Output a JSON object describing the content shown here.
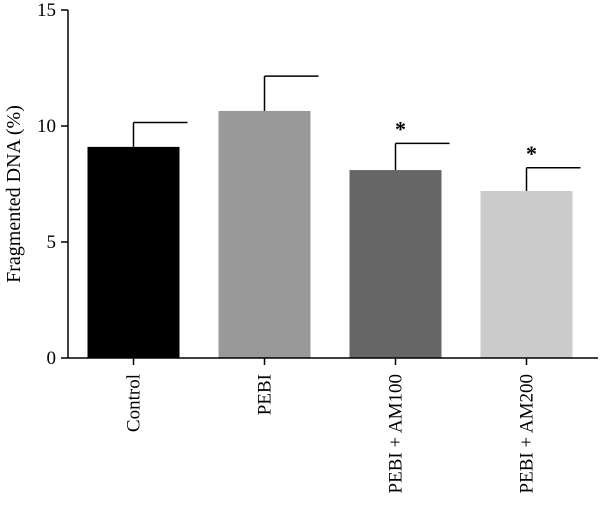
{
  "chart_data": {
    "type": "bar",
    "title": "",
    "xlabel": "",
    "ylabel": "Fragmented DNA (%)",
    "ylim": [
      0,
      15
    ],
    "yticks": [
      0,
      5,
      10,
      15
    ],
    "categories": [
      "Control",
      "PEBI",
      "PEBI + AM100",
      "PEBI + AM200"
    ],
    "values": [
      9.1,
      10.65,
      8.1,
      7.2
    ],
    "errors": [
      1.05,
      1.5,
      1.15,
      1.0
    ],
    "significance": [
      "",
      "",
      "*",
      "*"
    ],
    "colors": [
      "#000000",
      "#999999",
      "#666666",
      "#cccccc"
    ],
    "grid": false
  }
}
